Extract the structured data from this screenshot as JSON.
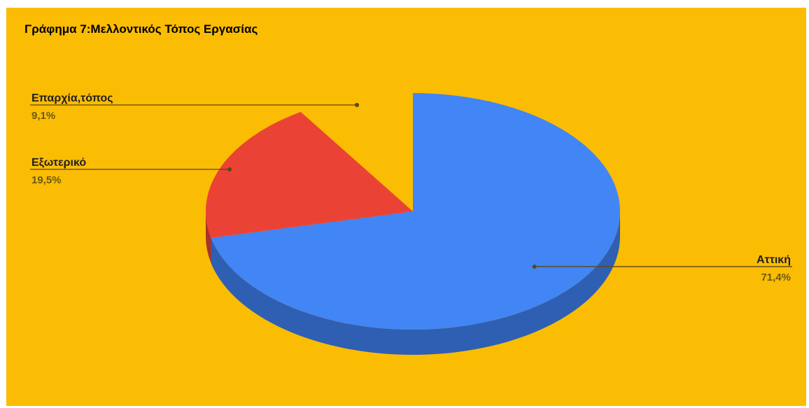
{
  "chart_data": {
    "type": "pie",
    "title": "Γράφημα 7:Μελλοντικός Τόπος Εργασίας",
    "background_color": "#fbbc04",
    "style": "3d",
    "slices": [
      {
        "label": "Αττική",
        "value": 71.4,
        "value_label": "71,4%",
        "color": "#4285f4",
        "side_color": "#2f5fb3",
        "label_position": "right"
      },
      {
        "label": "Εξωτερικό",
        "value": 19.5,
        "value_label": "19,5%",
        "color": "#ea4335",
        "side_color": "#a8322a",
        "label_position": "left"
      },
      {
        "label": "Επαρχία,τόπος",
        "value": 9.1,
        "value_label": "9,1%",
        "color": "#fbbc04",
        "side_color": "#c99603",
        "label_position": "left"
      }
    ]
  }
}
